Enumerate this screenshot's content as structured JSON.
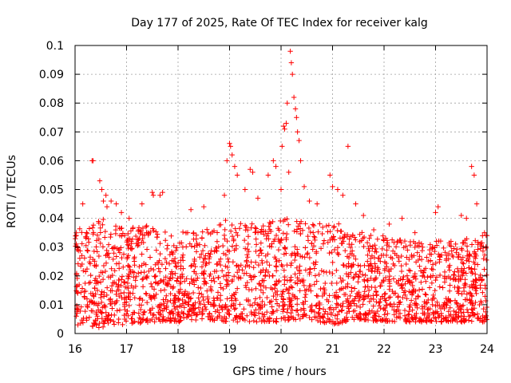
{
  "chart_data": {
    "type": "scatter",
    "title": "Day 177 of 2025, Rate Of TEC Index for receiver kalg",
    "xlabel": "GPS time / hours",
    "ylabel": "ROTI / TECUs",
    "xlim": [
      16,
      24
    ],
    "ylim": [
      0,
      0.1
    ],
    "grid": true,
    "marker": "+",
    "color": "#ff0000",
    "x_ticks": [
      "16",
      "17",
      "18",
      "19",
      "20",
      "21",
      "22",
      "23",
      "24"
    ],
    "y_ticks": [
      "0",
      "0.01",
      "0.02",
      "0.03",
      "0.04",
      "0.05",
      "0.06",
      "0.07",
      "0.08",
      "0.09",
      "0.1"
    ],
    "series": [
      {
        "name": "ROTI",
        "points": [
          [
            16.15,
            0.045
          ],
          [
            16.33,
            0.06
          ],
          [
            16.35,
            0.06
          ],
          [
            16.48,
            0.053
          ],
          [
            16.52,
            0.05
          ],
          [
            16.55,
            0.046
          ],
          [
            16.6,
            0.048
          ],
          [
            16.62,
            0.044
          ],
          [
            16.7,
            0.046
          ],
          [
            16.8,
            0.045
          ],
          [
            16.9,
            0.042
          ],
          [
            17.05,
            0.04
          ],
          [
            17.3,
            0.045
          ],
          [
            17.5,
            0.049
          ],
          [
            17.52,
            0.048
          ],
          [
            17.65,
            0.048
          ],
          [
            17.7,
            0.049
          ],
          [
            18.25,
            0.043
          ],
          [
            18.5,
            0.044
          ],
          [
            18.9,
            0.048
          ],
          [
            18.95,
            0.06
          ],
          [
            19.0,
            0.066
          ],
          [
            19.02,
            0.065
          ],
          [
            19.05,
            0.062
          ],
          [
            19.1,
            0.058
          ],
          [
            19.15,
            0.055
          ],
          [
            19.3,
            0.05
          ],
          [
            19.4,
            0.057
          ],
          [
            19.45,
            0.056
          ],
          [
            19.55,
            0.047
          ],
          [
            19.75,
            0.055
          ],
          [
            19.85,
            0.06
          ],
          [
            19.9,
            0.058
          ],
          [
            20.0,
            0.05
          ],
          [
            20.02,
            0.065
          ],
          [
            20.05,
            0.072
          ],
          [
            20.07,
            0.071
          ],
          [
            20.1,
            0.073
          ],
          [
            20.12,
            0.08
          ],
          [
            20.15,
            0.056
          ],
          [
            20.18,
            0.098
          ],
          [
            20.2,
            0.094
          ],
          [
            20.22,
            0.09
          ],
          [
            20.25,
            0.082
          ],
          [
            20.28,
            0.078
          ],
          [
            20.3,
            0.075
          ],
          [
            20.32,
            0.07
          ],
          [
            20.35,
            0.067
          ],
          [
            20.38,
            0.06
          ],
          [
            20.45,
            0.051
          ],
          [
            20.55,
            0.046
          ],
          [
            20.7,
            0.045
          ],
          [
            20.95,
            0.055
          ],
          [
            21.0,
            0.051
          ],
          [
            21.1,
            0.05
          ],
          [
            21.2,
            0.048
          ],
          [
            21.3,
            0.065
          ],
          [
            21.45,
            0.045
          ],
          [
            21.6,
            0.041
          ],
          [
            21.8,
            0.036
          ],
          [
            22.1,
            0.038
          ],
          [
            22.35,
            0.04
          ],
          [
            22.6,
            0.035
          ],
          [
            22.75,
            0.03
          ],
          [
            23.0,
            0.042
          ],
          [
            23.05,
            0.044
          ],
          [
            23.3,
            0.032
          ],
          [
            23.5,
            0.041
          ],
          [
            23.6,
            0.04
          ],
          [
            23.7,
            0.058
          ],
          [
            23.75,
            0.055
          ],
          [
            23.8,
            0.045
          ],
          [
            23.95,
            0.035
          ],
          [
            24.0,
            0.034
          ]
        ],
        "bulk_envelope": {
          "hours": [
            16,
            16.5,
            17,
            17.5,
            18,
            18.5,
            19,
            19.5,
            20,
            20.5,
            21,
            21.5,
            22,
            22.5,
            23,
            23.5,
            24
          ],
          "min": [
            0.003,
            0.002,
            0.003,
            0.004,
            0.004,
            0.005,
            0.004,
            0.004,
            0.004,
            0.005,
            0.003,
            0.005,
            0.004,
            0.004,
            0.004,
            0.004,
            0.004
          ],
          "max": [
            0.036,
            0.04,
            0.037,
            0.038,
            0.036,
            0.036,
            0.04,
            0.038,
            0.04,
            0.04,
            0.039,
            0.036,
            0.034,
            0.032,
            0.032,
            0.033,
            0.035
          ]
        },
        "bulk_count": 2200
      }
    ]
  }
}
